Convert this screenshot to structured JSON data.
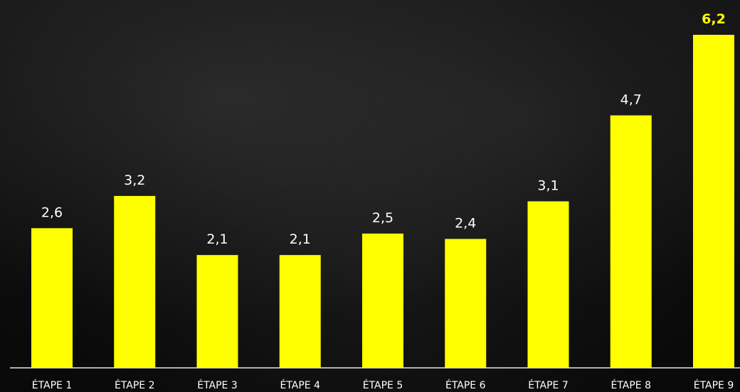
{
  "chart_data": {
    "type": "bar",
    "categories": [
      "ÉTAPE 1",
      "ÉTAPE 2",
      "ÉTAPE 3",
      "ÉTAPE 4",
      "ÉTAPE 5",
      "ÉTAPE 6",
      "ÉTAPE 7",
      "ÉTAPE 8",
      "ÉTAPE 9"
    ],
    "values": [
      2.6,
      3.2,
      2.1,
      2.1,
      2.5,
      2.4,
      3.1,
      4.7,
      6.2
    ],
    "value_labels": [
      "2,6",
      "3,2",
      "2,1",
      "2,1",
      "2,5",
      "2,4",
      "3,1",
      "4,7",
      "6,2"
    ],
    "highlight_index": 8,
    "ylim": [
      0,
      6.2
    ],
    "grid": false,
    "title": "",
    "xlabel": "",
    "ylabel": ""
  },
  "colors": {
    "bar": "#ffff00",
    "label": "#ffffff",
    "highlight_label": "#ffff00",
    "axis": "#e6e6e6"
  }
}
